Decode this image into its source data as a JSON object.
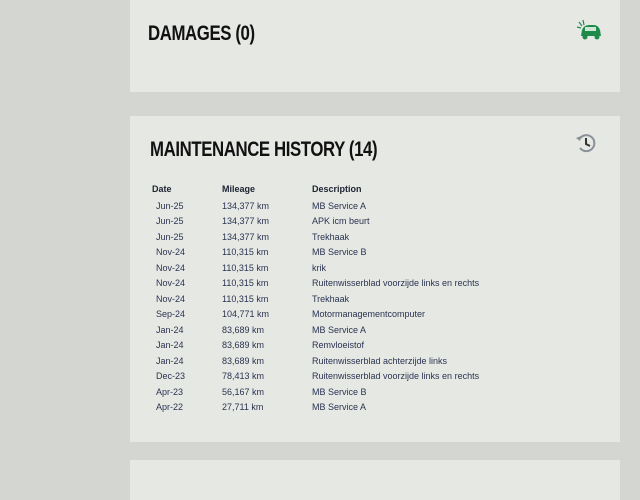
{
  "damages": {
    "title": "DAMAGES (0)",
    "icon": "car-damage-icon",
    "accent": "#1e8a4a"
  },
  "maintenance": {
    "title": "MAINTENANCE HISTORY (14)",
    "icon": "history-icon",
    "columns": [
      "Date",
      "Mileage",
      "Description"
    ],
    "rows": [
      [
        "Jun-25",
        "134,377 km",
        "MB Service A"
      ],
      [
        "Jun-25",
        "134,377 km",
        "APK icm beurt"
      ],
      [
        "Jun-25",
        "134,377 km",
        "Trekhaak"
      ],
      [
        "Nov-24",
        "110,315 km",
        "MB Service B"
      ],
      [
        "Nov-24",
        "110,315 km",
        "krik"
      ],
      [
        "Nov-24",
        "110,315 km",
        "Ruitenwisserblad voorzijde links en rechts"
      ],
      [
        "Nov-24",
        "110,315 km",
        "Trekhaak"
      ],
      [
        "Sep-24",
        "104,771 km",
        "Motormanagementcomputer"
      ],
      [
        "Jan-24",
        "83,689 km",
        "MB Service A"
      ],
      [
        "Jan-24",
        "83,689 km",
        "Remvloeistof"
      ],
      [
        "Jan-24",
        "83,689 km",
        "Ruitenwisserblad achterzijde links"
      ],
      [
        "Dec-23",
        "78,413 km",
        "Ruitenwisserblad voorzijde links en rechts"
      ],
      [
        "Apr-23",
        "56,167 km",
        "MB Service B"
      ],
      [
        "Apr-22",
        "27,711 km",
        "MB Service A"
      ]
    ]
  }
}
